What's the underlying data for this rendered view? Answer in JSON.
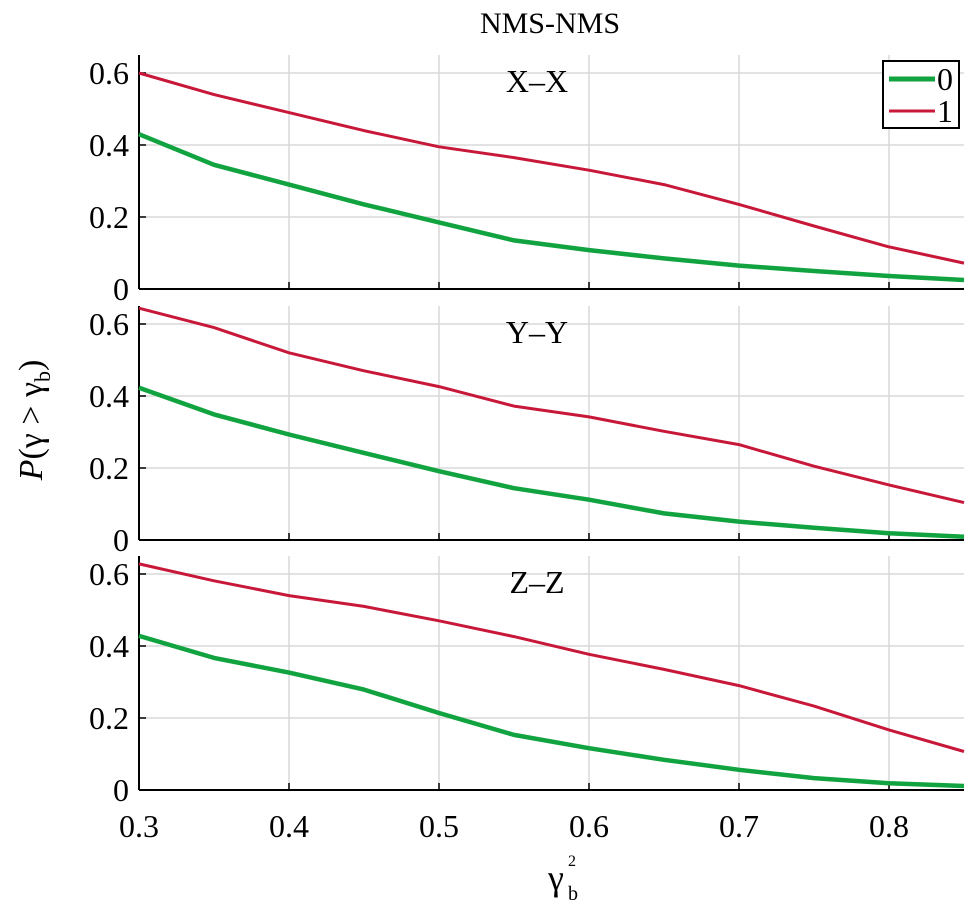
{
  "chart_data": {
    "type": "line",
    "title": "NMS-NMS",
    "xlabel": "γ_b^2",
    "ylabel": "P(γ > γ_b)",
    "xlim": [
      0.3,
      0.85
    ],
    "x_ticks": [
      "0.3",
      "0.4",
      "0.5",
      "0.6",
      "0.7",
      "0.8"
    ],
    "y_ticks": [
      "0",
      "0.2",
      "0.4",
      "0.6"
    ],
    "ylim": [
      0,
      0.65
    ],
    "grid": true,
    "legend": {
      "placement": "top-right",
      "entries": [
        "0",
        "1"
      ]
    },
    "colors": {
      "0": "#11a33f",
      "1": "#c8183a"
    },
    "x": [
      0.3,
      0.35,
      0.4,
      0.45,
      0.5,
      0.55,
      0.6,
      0.65,
      0.7,
      0.75,
      0.8,
      0.85
    ],
    "panels": [
      {
        "label": "X–X",
        "series": [
          {
            "name": "0",
            "values": [
              0.43,
              0.345,
              0.29,
              0.235,
              0.185,
              0.135,
              0.108,
              0.085,
              0.065,
              0.05,
              0.036,
              0.025
            ]
          },
          {
            "name": "1",
            "values": [
              0.6,
              0.54,
              0.49,
              0.44,
              0.395,
              0.365,
              0.33,
              0.29,
              0.235,
              0.175,
              0.117,
              0.072
            ]
          }
        ]
      },
      {
        "label": "Y–Y",
        "series": [
          {
            "name": "0",
            "values": [
              0.423,
              0.349,
              0.293,
              0.242,
              0.191,
              0.144,
              0.112,
              0.074,
              0.051,
              0.034,
              0.019,
              0.009
            ]
          },
          {
            "name": "1",
            "values": [
              0.644,
              0.59,
              0.52,
              0.47,
              0.426,
              0.372,
              0.342,
              0.302,
              0.265,
              0.205,
              0.153,
              0.104
            ]
          }
        ]
      },
      {
        "label": "Z–Z",
        "series": [
          {
            "name": "0",
            "values": [
              0.428,
              0.367,
              0.326,
              0.279,
              0.214,
              0.153,
              0.116,
              0.084,
              0.056,
              0.033,
              0.019,
              0.011
            ]
          },
          {
            "name": "1",
            "values": [
              0.628,
              0.581,
              0.54,
              0.51,
              0.47,
              0.426,
              0.377,
              0.335,
              0.29,
              0.233,
              0.167,
              0.107
            ]
          }
        ]
      }
    ]
  }
}
